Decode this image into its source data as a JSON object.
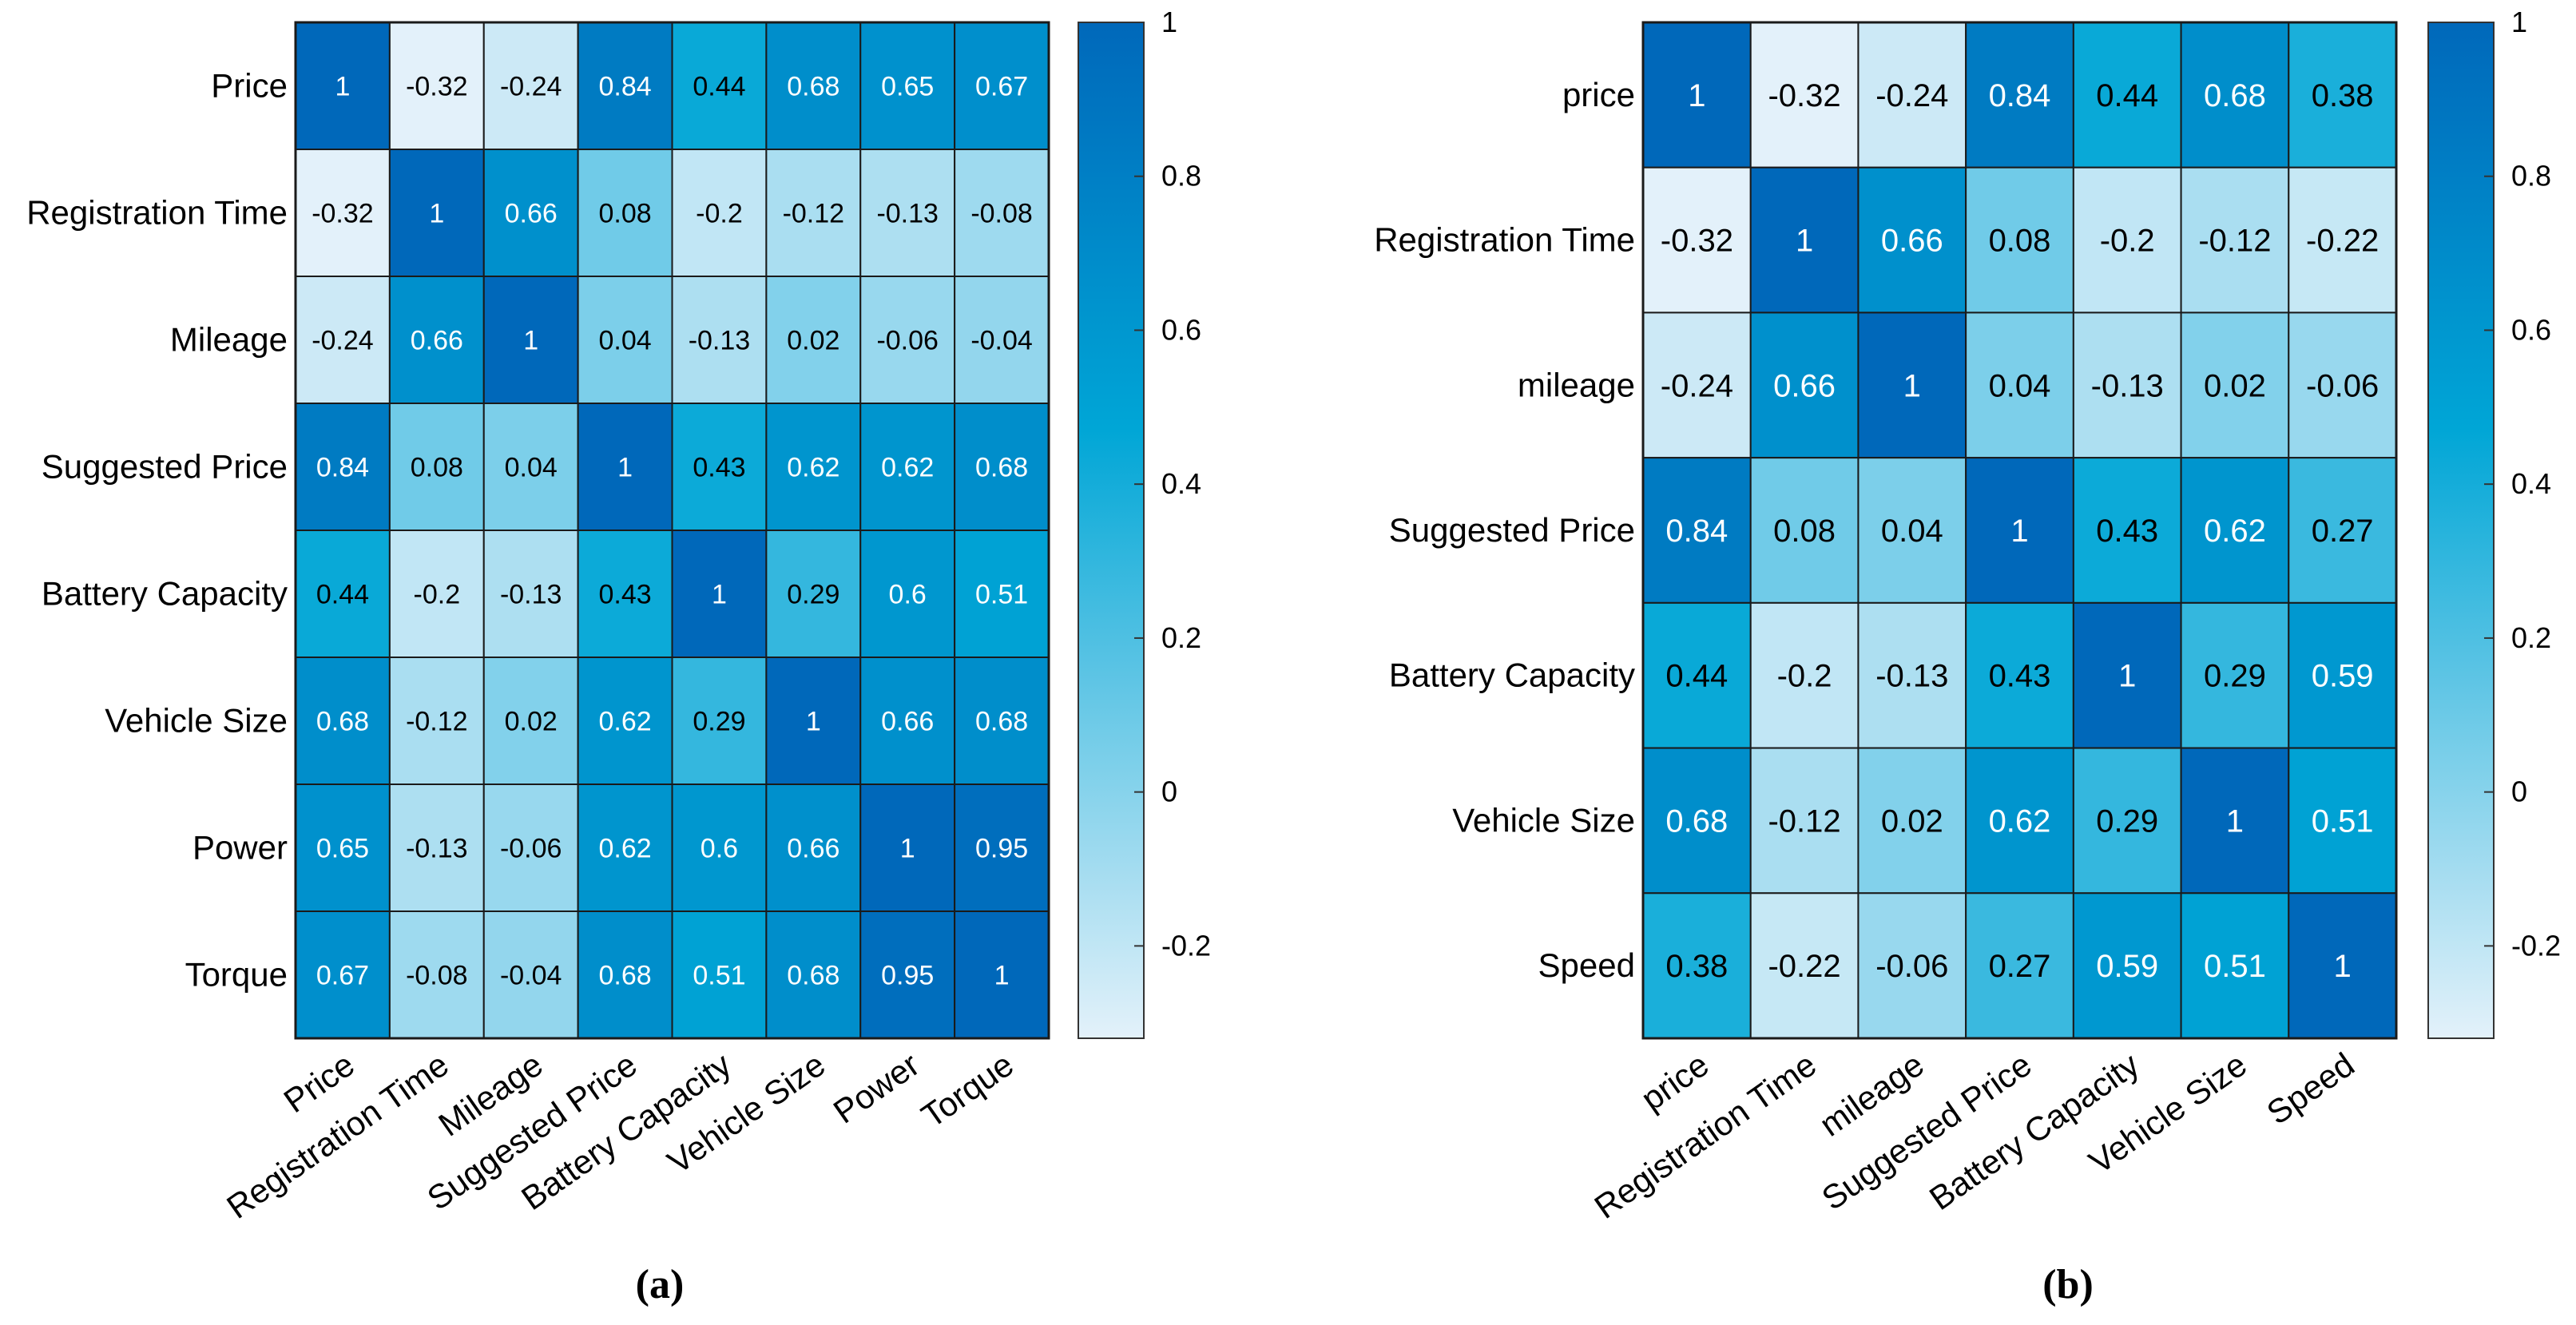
{
  "chart_data": [
    {
      "type": "heatmap",
      "panel_label": "(a)",
      "row_labels": [
        "Price",
        "Registration Time",
        "Mileage",
        "Suggested Price",
        "Battery Capacity",
        "Vehicle Size",
        "Power",
        "Torque"
      ],
      "col_labels": [
        "Price",
        "Registration Time",
        "Mileage",
        "Suggested Price",
        "Battery Capacity",
        "Vehicle Size",
        "Power",
        "Torque"
      ],
      "values": [
        [
          1,
          -0.32,
          -0.24,
          0.84,
          0.44,
          0.68,
          0.65,
          0.67
        ],
        [
          -0.32,
          1,
          0.66,
          0.08,
          -0.2,
          -0.12,
          -0.13,
          -0.08
        ],
        [
          -0.24,
          0.66,
          1,
          0.04,
          -0.13,
          0.02,
          -0.06,
          -0.04
        ],
        [
          0.84,
          0.08,
          0.04,
          1,
          0.43,
          0.62,
          0.62,
          0.68
        ],
        [
          0.44,
          -0.2,
          -0.13,
          0.43,
          1,
          0.29,
          0.6,
          0.51
        ],
        [
          0.68,
          -0.12,
          0.02,
          0.62,
          0.29,
          1,
          0.66,
          0.68
        ],
        [
          0.65,
          -0.13,
          -0.06,
          0.62,
          0.6,
          0.66,
          1,
          0.95
        ],
        [
          0.67,
          -0.08,
          -0.04,
          0.68,
          0.51,
          0.68,
          0.95,
          1
        ]
      ],
      "colorbar": {
        "ticks": [
          "1",
          "0.8",
          "0.6",
          "0.4",
          "0.2",
          "0",
          "-0.2"
        ],
        "tick_values": [
          1,
          0.8,
          0.6,
          0.4,
          0.2,
          0,
          -0.2
        ],
        "range": [
          -0.32,
          1
        ]
      }
    },
    {
      "type": "heatmap",
      "panel_label": "(b)",
      "row_labels": [
        "price",
        "Registration Time",
        "mileage",
        "Suggested Price",
        "Battery Capacity",
        "Vehicle Size",
        "Speed"
      ],
      "col_labels": [
        "price",
        "Registration Time",
        "mileage",
        "Suggested Price",
        "Battery Capacity",
        "Vehicle Size",
        "Speed"
      ],
      "values": [
        [
          1,
          -0.32,
          -0.24,
          0.84,
          0.44,
          0.68,
          0.38
        ],
        [
          -0.32,
          1,
          0.66,
          0.08,
          -0.2,
          -0.12,
          -0.22
        ],
        [
          -0.24,
          0.66,
          1,
          0.04,
          -0.13,
          0.02,
          -0.06
        ],
        [
          0.84,
          0.08,
          0.04,
          1,
          0.43,
          0.62,
          0.27
        ],
        [
          0.44,
          -0.2,
          -0.13,
          0.43,
          1,
          0.29,
          0.59
        ],
        [
          0.68,
          -0.12,
          0.02,
          0.62,
          0.29,
          1,
          0.51
        ],
        [
          0.38,
          -0.22,
          -0.06,
          0.27,
          0.59,
          0.51,
          1
        ]
      ],
      "colorbar": {
        "ticks": [
          "1",
          "0.8",
          "0.6",
          "0.4",
          "0.2",
          "0",
          "-0.2"
        ],
        "tick_values": [
          1,
          0.8,
          0.6,
          0.4,
          0.2,
          0,
          -0.2
        ],
        "range": [
          -0.32,
          1
        ]
      }
    }
  ],
  "colors": {
    "low": "#e3f1fa",
    "mid": "#00a6d6",
    "high": "#0068ba",
    "grid": "#1a1a1a"
  }
}
